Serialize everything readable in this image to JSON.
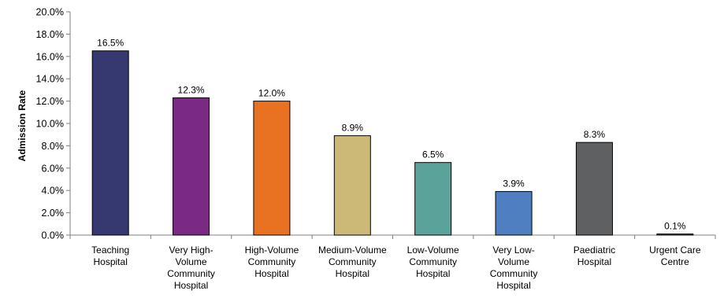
{
  "chart_data": {
    "type": "bar",
    "title": "",
    "xlabel": "",
    "ylabel": "Admission Rate",
    "ylim": [
      0,
      20
    ],
    "ytick_step": 2,
    "ytick_labels": [
      "0.0%",
      "2.0%",
      "4.0%",
      "6.0%",
      "8.0%",
      "10.0%",
      "12.0%",
      "14.0%",
      "16.0%",
      "18.0%",
      "20.0%"
    ],
    "grid": false,
    "legend": "none",
    "categories": [
      [
        "Teaching",
        "Hospital"
      ],
      [
        "Very High-",
        "Volume",
        "Community",
        "Hospital"
      ],
      [
        "High-Volume",
        "Community",
        "Hospital"
      ],
      [
        "Medium-Volume",
        "Community",
        "Hospital"
      ],
      [
        "Low-Volume",
        "Community",
        "Hospital"
      ],
      [
        "Very Low-",
        "Volume",
        "Community",
        "Hospital"
      ],
      [
        "Paediatric",
        "Hospital"
      ],
      [
        "Urgent Care",
        "Centre"
      ]
    ],
    "values": [
      16.5,
      12.3,
      12.0,
      8.9,
      6.5,
      3.9,
      8.3,
      0.1
    ],
    "data_labels": [
      "16.5%",
      "12.3%",
      "12.0%",
      "8.9%",
      "6.5%",
      "3.9%",
      "8.3%",
      "0.1%"
    ],
    "colors": [
      "#353970",
      "#7B2A83",
      "#E87222",
      "#CDB977",
      "#5BA29B",
      "#4F7FC0",
      "#5F6062",
      "#6D6D6D"
    ]
  }
}
